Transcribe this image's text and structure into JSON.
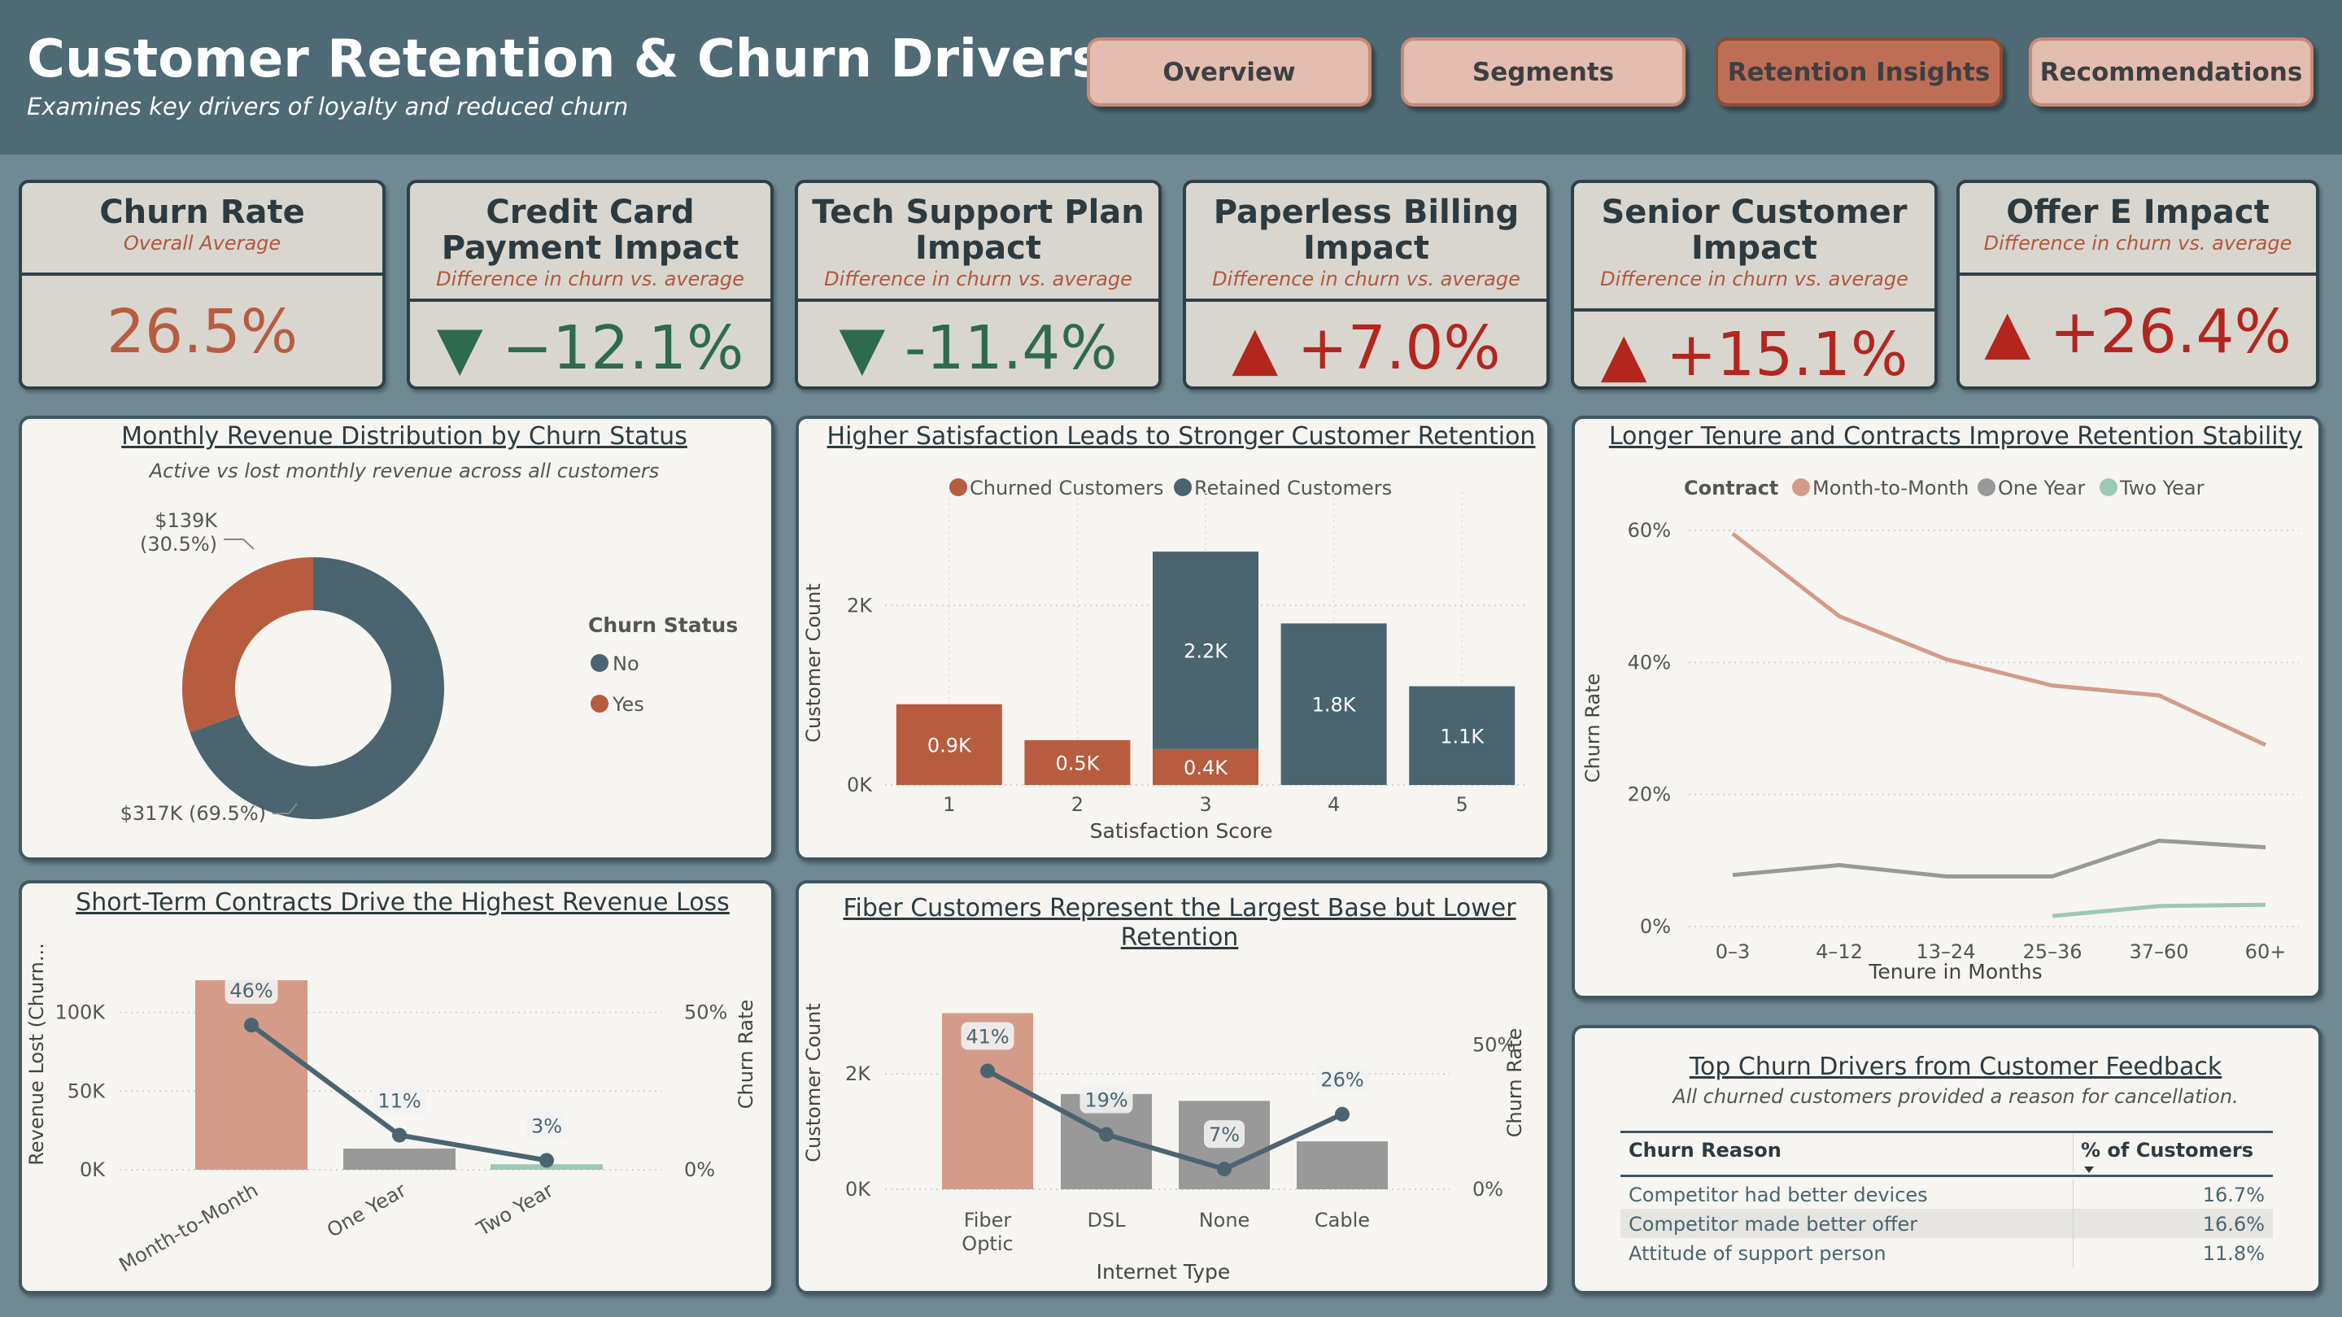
{
  "header": {
    "title": "Customer Retention & Churn Drivers",
    "subtitle": "Examines key drivers of loyalty and reduced churn",
    "nav": [
      {
        "label": "Overview",
        "active": false
      },
      {
        "label": "Segments",
        "active": false
      },
      {
        "label": "Retention Insights",
        "active": true
      },
      {
        "label": "Recommendations",
        "active": false
      }
    ]
  },
  "kpis": [
    {
      "title": "Churn Rate",
      "subtitle": "Overall Average",
      "arrow": "",
      "value": "26.5%",
      "color": "#b85c3f"
    },
    {
      "title": "Credit Card Payment Impact",
      "subtitle": "Difference in churn vs. average",
      "arrow": "▼",
      "value": "−12.1%",
      "color": "#2e6b4e"
    },
    {
      "title": "Tech Support Plan Impact",
      "subtitle": "Difference in churn vs. average",
      "arrow": "▼",
      "value": "-11.4%",
      "color": "#2e6b4e"
    },
    {
      "title": "Paperless Billing Impact",
      "subtitle": "Difference in churn vs. average",
      "arrow": "▲",
      "value": "+7.0%",
      "color": "#b3261e"
    },
    {
      "title": "Senior Customer Impact",
      "subtitle": "Difference in churn vs. average",
      "arrow": "▲",
      "value": "+15.1%",
      "color": "#b3261e"
    },
    {
      "title": "Offer E Impact",
      "subtitle": "Difference in churn vs. average",
      "arrow": "▲",
      "value": "+26.4%",
      "color": "#b3261e"
    }
  ],
  "colors": {
    "churned": "#b85c3f",
    "retained": "#4a6570",
    "month": "#d39b88",
    "one_year": "#999999",
    "two_year": "#9dc7b6",
    "line_dark": "#4a6570"
  },
  "chart_data": [
    {
      "id": "revenue_donut",
      "type": "pie",
      "title": "Monthly Revenue Distribution by Churn Status",
      "subtitle": "Active vs lost monthly revenue across all customers",
      "legend_title": "Churn Status",
      "legend_position": "right",
      "slices": [
        {
          "label": "No",
          "value": 317,
          "percent": 69.5,
          "text": "$317K (69.5%)"
        },
        {
          "label": "Yes",
          "value": 139,
          "percent": 30.5,
          "text_1": "$139K",
          "text_2": "(30.5%)"
        }
      ]
    },
    {
      "id": "satisfaction_bar",
      "type": "bar",
      "title": "Higher Satisfaction Leads to Stronger Customer Retention",
      "stacked": true,
      "legend_position": "top",
      "xlabel": "Satisfaction Score",
      "ylabel": "Customer Count",
      "ylim": [
        0,
        3000
      ],
      "yticks": [
        {
          "value": 0,
          "label": "0K"
        },
        {
          "value": 2000,
          "label": "2K"
        }
      ],
      "categories": [
        "1",
        "2",
        "3",
        "4",
        "5"
      ],
      "series": [
        {
          "name": "Churned Customers",
          "values": [
            900,
            500,
            400,
            0,
            0
          ],
          "labels": [
            "0.9K",
            "0.5K",
            "0.4K",
            "",
            ""
          ]
        },
        {
          "name": "Retained Customers",
          "values": [
            0,
            0,
            2200,
            1800,
            1100
          ],
          "labels": [
            "",
            "",
            "2.2K",
            "1.8K",
            "1.1K"
          ]
        }
      ]
    },
    {
      "id": "tenure_line",
      "type": "line",
      "title": "Longer Tenure and Contracts Improve Retention Stability",
      "legend_title": "Contract",
      "legend_position": "top",
      "xlabel": "Tenure in Months",
      "ylabel": "Churn Rate",
      "ylim": [
        0,
        60
      ],
      "yticks": [
        {
          "value": 0,
          "label": "0%"
        },
        {
          "value": 20,
          "label": "20%"
        },
        {
          "value": 40,
          "label": "40%"
        },
        {
          "value": 60,
          "label": "60%"
        }
      ],
      "x": [
        "0–3",
        "4–12",
        "13–24",
        "25–36",
        "37–60",
        "60+"
      ],
      "series": [
        {
          "name": "Month-to-Month",
          "values": [
            59.5,
            47,
            40.5,
            36.5,
            35,
            27.5
          ]
        },
        {
          "name": "One Year",
          "values": [
            7.8,
            9.3,
            7.6,
            7.6,
            13,
            12
          ]
        },
        {
          "name": "Two Year",
          "values": [
            null,
            null,
            null,
            1.6,
            3.1,
            3.3
          ]
        }
      ]
    },
    {
      "id": "contract_combo",
      "type": "bar",
      "title": "Short-Term Contracts Drive the Highest Revenue Loss",
      "ylabel": "Revenue Lost (Churn...",
      "y2label": "Churn Rate",
      "ylim": [
        0,
        120000
      ],
      "y2lim": [
        0,
        60
      ],
      "yticks": [
        {
          "value": 0,
          "label": "0K"
        },
        {
          "value": 50000,
          "label": "50K"
        },
        {
          "value": 100000,
          "label": "100K"
        }
      ],
      "y2ticks": [
        {
          "value": 0,
          "label": "0%"
        },
        {
          "value": 50,
          "label": "50%"
        }
      ],
      "categories": [
        "Month-to-Month",
        "One Year",
        "Two Year"
      ],
      "bars": [
        120500,
        13500,
        3500
      ],
      "line": [
        46,
        11,
        3
      ],
      "line_labels": [
        "46%",
        "11%",
        "3%"
      ]
    },
    {
      "id": "internet_combo",
      "type": "bar",
      "title_1": "Fiber Customers Represent the Largest Base but Lower",
      "title_2": "Retention",
      "xlabel": "Internet Type",
      "ylabel": "Customer Count",
      "y2label": "Churn Rate",
      "ylim": [
        0,
        3000
      ],
      "y2lim": [
        0,
        60
      ],
      "yticks": [
        {
          "value": 0,
          "label": "0K"
        },
        {
          "value": 2000,
          "label": "2K"
        }
      ],
      "y2ticks": [
        {
          "value": 0,
          "label": "0%"
        },
        {
          "value": 50,
          "label": "50%"
        }
      ],
      "categories": [
        [
          "Fiber",
          "Optic"
        ],
        [
          "DSL"
        ],
        [
          "None"
        ],
        [
          "Cable"
        ]
      ],
      "bars": [
        3050,
        1650,
        1530,
        830
      ],
      "line": [
        41,
        19,
        7,
        26
      ],
      "line_labels": [
        "41%",
        "19%",
        "7%",
        "26%"
      ]
    },
    {
      "id": "drivers_table",
      "type": "table",
      "title": "Top Churn Drivers from Customer Feedback",
      "subtitle": "All churned customers provided a reason for cancellation.",
      "columns": [
        "Churn Reason",
        "% of Customers"
      ],
      "rows": [
        [
          "Competitor had better devices",
          "16.7%"
        ],
        [
          "Competitor made better offer",
          "16.6%"
        ],
        [
          "Attitude of support person",
          "11.8%"
        ]
      ]
    }
  ]
}
